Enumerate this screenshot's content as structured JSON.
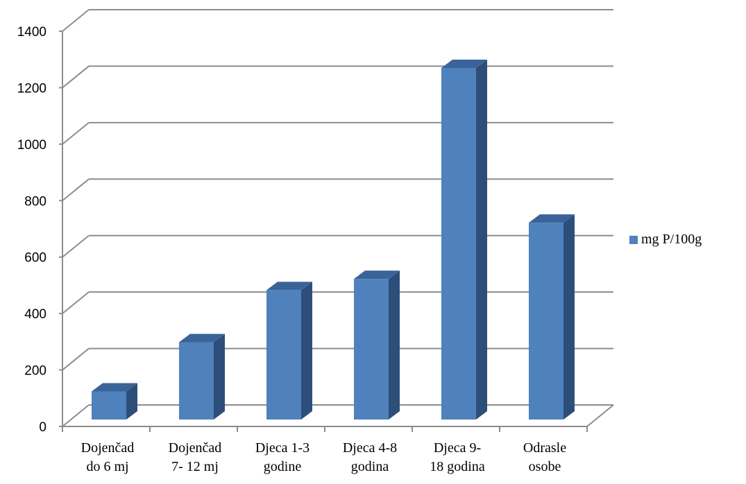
{
  "chart_data": {
    "type": "bar",
    "style": "3d-column",
    "categories": [
      [
        "Dojenčad",
        "do 6 mj"
      ],
      [
        "Dojenčad",
        "7- 12 mj"
      ],
      [
        "Djeca 1-3",
        "godine"
      ],
      [
        "Djeca 4-8",
        "godina"
      ],
      [
        "Djeca 9-",
        "18 godina"
      ],
      [
        "Odrasle",
        "osobe"
      ]
    ],
    "series": [
      {
        "name": "mg P/100g",
        "values": [
          100,
          275,
          460,
          500,
          1250,
          700
        ],
        "color": "#4F81BD"
      }
    ],
    "yticks": [
      "0",
      "200",
      "400",
      "600",
      "800",
      "1000",
      "1200",
      "1400"
    ],
    "ylim": [
      0,
      1400
    ],
    "grid": true,
    "legend_position": "right"
  }
}
